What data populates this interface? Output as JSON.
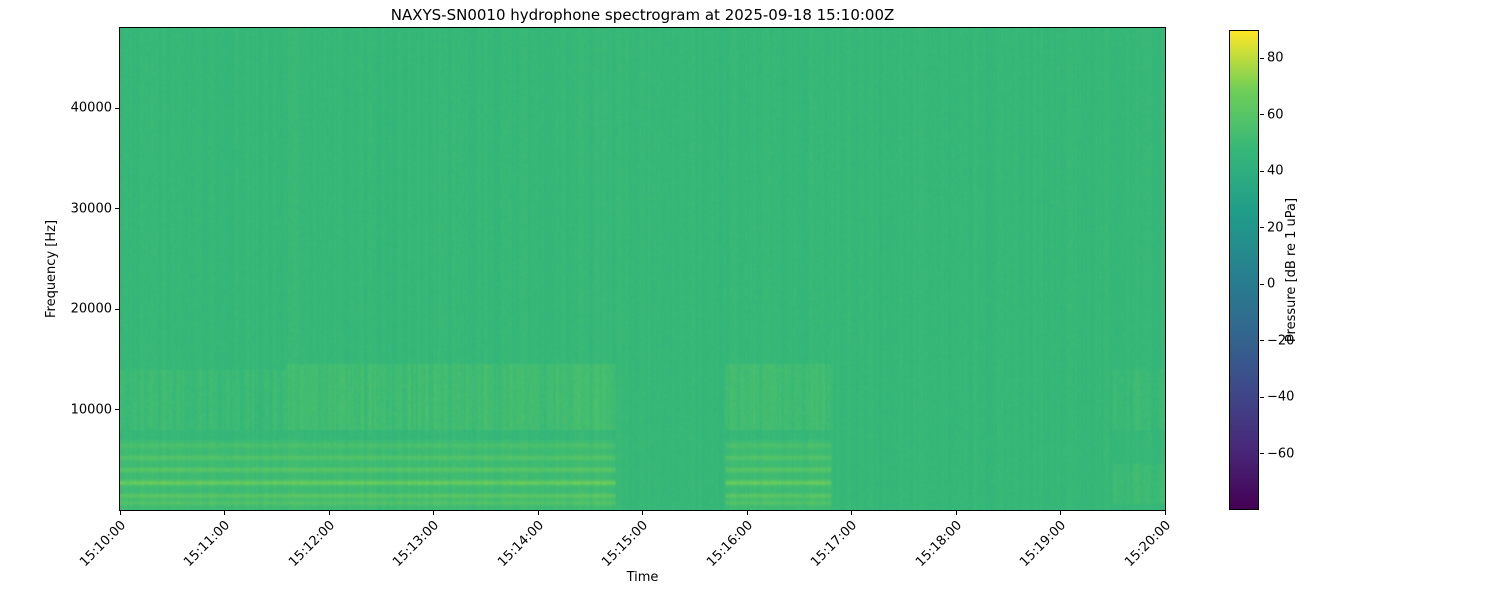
{
  "chart_data": {
    "type": "heatmap",
    "title": "NAXYS-SN0010 hydrophone spectrogram at 2025-09-18 15:10:00Z",
    "xlabel": "Time",
    "ylabel": "Frequency [Hz]",
    "x_tick_labels": [
      "15:10:00",
      "15:11:00",
      "15:12:00",
      "15:13:00",
      "15:14:00",
      "15:15:00",
      "15:16:00",
      "15:17:00",
      "15:18:00",
      "15:19:00",
      "15:20:00"
    ],
    "x_range_seconds": [
      0,
      600
    ],
    "y_tick_values": [
      10000,
      20000,
      30000,
      40000
    ],
    "y_range_hz": [
      0,
      48000
    ],
    "grid": false,
    "colorbar": {
      "label": "Pressure [dB re 1 uPa]",
      "tick_values": [
        80,
        60,
        40,
        20,
        0,
        -20,
        -40,
        -60
      ],
      "value_range": [
        -80,
        90
      ],
      "colormap": "viridis",
      "gradient_stops": [
        "#440154",
        "#482878",
        "#3e4989",
        "#31688e",
        "#26828e",
        "#1f9e89",
        "#35b779",
        "#6ece58",
        "#fde725"
      ]
    },
    "background_level_db": 48,
    "features": [
      {
        "type": "tonal_lines",
        "name": "vessel-tonals-window-1",
        "time_s": [
          0,
          285
        ],
        "lines": [
          {
            "hz": 700,
            "amp_db": 8
          },
          {
            "hz": 1400,
            "amp_db": 11
          },
          {
            "hz": 2700,
            "amp_db": 16
          },
          {
            "hz": 4000,
            "amp_db": 10
          },
          {
            "hz": 5200,
            "amp_db": 8
          },
          {
            "hz": 6400,
            "amp_db": 5
          }
        ]
      },
      {
        "type": "tonal_lines",
        "name": "vessel-tonals-window-2",
        "time_s": [
          348,
          408
        ],
        "lines": [
          {
            "hz": 700,
            "amp_db": 8
          },
          {
            "hz": 1400,
            "amp_db": 11
          },
          {
            "hz": 2700,
            "amp_db": 16
          },
          {
            "hz": 4000,
            "amp_db": 10
          },
          {
            "hz": 5200,
            "amp_db": 8
          },
          {
            "hz": 6400,
            "amp_db": 5
          }
        ]
      },
      {
        "type": "band",
        "name": "broadband-low-1",
        "time_s": [
          0,
          285
        ],
        "freq_hz": [
          0,
          7000
        ],
        "amp_db": 3,
        "striped": false
      },
      {
        "type": "band",
        "name": "broadband-low-2",
        "time_s": [
          348,
          408
        ],
        "freq_hz": [
          0,
          7000
        ],
        "amp_db": 3,
        "striped": false
      },
      {
        "type": "band",
        "name": "mid-band-early",
        "time_s": [
          0,
          95
        ],
        "freq_hz": [
          8000,
          14000
        ],
        "amp_db": 2,
        "striped": true
      },
      {
        "type": "band",
        "name": "mid-band-1",
        "time_s": [
          95,
          285
        ],
        "freq_hz": [
          8000,
          14500
        ],
        "amp_db": 4,
        "striped": true
      },
      {
        "type": "band",
        "name": "mid-band-2",
        "time_s": [
          348,
          408
        ],
        "freq_hz": [
          8000,
          14500
        ],
        "amp_db": 4,
        "striped": true
      },
      {
        "type": "band",
        "name": "late-low-band",
        "time_s": [
          570,
          600
        ],
        "freq_hz": [
          500,
          4500
        ],
        "amp_db": 3,
        "striped": true
      },
      {
        "type": "band",
        "name": "late-mid-band",
        "time_s": [
          570,
          600
        ],
        "freq_hz": [
          8000,
          14000
        ],
        "amp_db": 2,
        "striped": true
      }
    ]
  }
}
